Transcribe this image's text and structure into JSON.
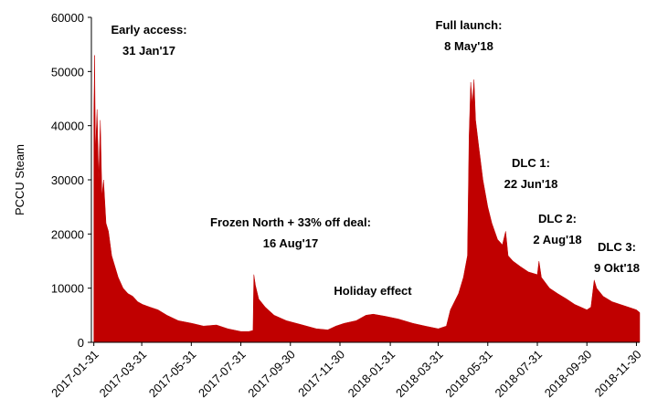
{
  "chart_data": {
    "type": "area",
    "y_label": "PCCU Steam",
    "ylim": [
      0,
      60000
    ],
    "yticks": [
      0,
      10000,
      20000,
      30000,
      40000,
      50000,
      60000
    ],
    "xlim": [
      "2017-01-28",
      "2018-12-04"
    ],
    "xticks": [
      "2017-01-31",
      "2017-03-31",
      "2017-05-31",
      "2017-07-31",
      "2017-09-30",
      "2017-11-30",
      "2018-01-31",
      "2018-03-31",
      "2018-05-31",
      "2018-07-31",
      "2018-09-30",
      "2018-11-30"
    ],
    "annotations": [
      {
        "lines": [
          "Early access:",
          "31 Jan'17"
        ]
      },
      {
        "lines": [
          "Full launch:",
          "8 May'18"
        ]
      },
      {
        "lines": [
          "DLC 1:",
          "22 Jun'18"
        ]
      },
      {
        "lines": [
          "Frozen North + 33% off deal:",
          "16 Aug'17"
        ]
      },
      {
        "lines": [
          "Holiday effect"
        ]
      },
      {
        "lines": [
          "DLC 2:",
          "2 Aug'18"
        ]
      },
      {
        "lines": [
          "DLC 3:",
          "9 Okt'18"
        ]
      }
    ],
    "x": [
      "2017-01-31",
      "2017-02-01",
      "2017-02-02",
      "2017-02-04",
      "2017-02-06",
      "2017-02-08",
      "2017-02-10",
      "2017-02-12",
      "2017-02-15",
      "2017-02-18",
      "2017-02-22",
      "2017-02-26",
      "2017-03-02",
      "2017-03-08",
      "2017-03-14",
      "2017-03-20",
      "2017-03-26",
      "2017-04-01",
      "2017-04-10",
      "2017-04-20",
      "2017-05-01",
      "2017-05-15",
      "2017-06-01",
      "2017-06-15",
      "2017-07-01",
      "2017-07-15",
      "2017-07-31",
      "2017-08-10",
      "2017-08-15",
      "2017-08-16",
      "2017-08-18",
      "2017-08-22",
      "2017-08-30",
      "2017-09-10",
      "2017-09-25",
      "2017-10-15",
      "2017-11-01",
      "2017-11-15",
      "2017-11-25",
      "2017-12-05",
      "2017-12-20",
      "2018-01-01",
      "2018-01-10",
      "2018-01-25",
      "2018-02-10",
      "2018-02-28",
      "2018-03-15",
      "2018-03-31",
      "2018-04-10",
      "2018-04-15",
      "2018-04-25",
      "2018-05-01",
      "2018-05-06",
      "2018-05-08",
      "2018-05-10",
      "2018-05-12",
      "2018-05-14",
      "2018-05-16",
      "2018-05-20",
      "2018-05-25",
      "2018-05-31",
      "2018-06-05",
      "2018-06-12",
      "2018-06-18",
      "2018-06-22",
      "2018-06-25",
      "2018-07-01",
      "2018-07-10",
      "2018-07-20",
      "2018-07-31",
      "2018-08-02",
      "2018-08-05",
      "2018-08-15",
      "2018-08-25",
      "2018-09-05",
      "2018-09-15",
      "2018-09-30",
      "2018-10-05",
      "2018-10-09",
      "2018-10-12",
      "2018-10-20",
      "2018-10-31",
      "2018-11-10",
      "2018-11-20",
      "2018-11-30",
      "2018-12-04"
    ],
    "series": [
      {
        "name": "PCCU Steam",
        "color": "#c00000",
        "values": [
          42000,
          53000,
          35000,
          43000,
          30000,
          41000,
          27000,
          30000,
          22000,
          20500,
          16000,
          14000,
          12000,
          10000,
          9000,
          8500,
          7500,
          7000,
          6500,
          6000,
          5000,
          4000,
          3500,
          3000,
          3200,
          2500,
          2000,
          2000,
          2200,
          12500,
          10500,
          8000,
          6500,
          5000,
          4000,
          3200,
          2500,
          2300,
          3000,
          3500,
          4000,
          5000,
          5200,
          4800,
          4300,
          3500,
          3000,
          2500,
          3000,
          6000,
          9000,
          12000,
          16000,
          38000,
          48000,
          44000,
          48500,
          41000,
          36000,
          30000,
          25000,
          22000,
          19000,
          18000,
          20500,
          16000,
          15000,
          14000,
          13000,
          12500,
          15000,
          12000,
          10000,
          9000,
          8000,
          7000,
          6000,
          6500,
          11500,
          10000,
          8500,
          7500,
          7000,
          6500,
          6000,
          5500
        ]
      }
    ]
  }
}
